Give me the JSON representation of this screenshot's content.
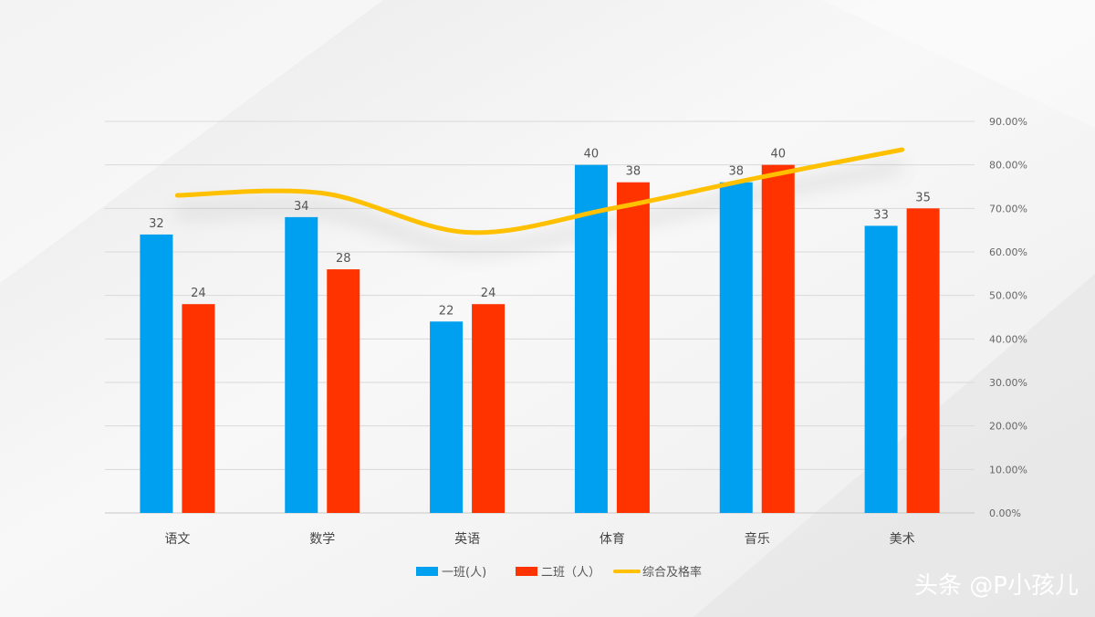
{
  "chart_data": {
    "type": "bar",
    "categories": [
      "语文",
      "数学",
      "英语",
      "体育",
      "音乐",
      "美术"
    ],
    "series": [
      {
        "name": "一班(人)",
        "type": "bar",
        "axis": "left",
        "color": "#00a0f0",
        "values": [
          32,
          34,
          22,
          40,
          38,
          33
        ]
      },
      {
        "name": "二班（人）",
        "type": "bar",
        "axis": "left",
        "color": "#ff3300",
        "values": [
          24,
          28,
          24,
          38,
          40,
          35
        ]
      },
      {
        "name": "综合及格率",
        "type": "line",
        "axis": "right",
        "smooth": true,
        "color": "#ffc000",
        "values": [
          0.73,
          0.735,
          0.645,
          0.7,
          0.77,
          0.835
        ]
      }
    ],
    "y_left_range": [
      0,
      45
    ],
    "y_right_range": [
      0,
      0.9
    ],
    "y_right_ticks": [
      "0.00%",
      "10.00%",
      "20.00%",
      "30.00%",
      "40.00%",
      "50.00%",
      "60.00%",
      "70.00%",
      "80.00%",
      "90.00%"
    ],
    "grid": true,
    "legend_position": "bottom"
  },
  "watermark": "头条 @P小孩儿"
}
